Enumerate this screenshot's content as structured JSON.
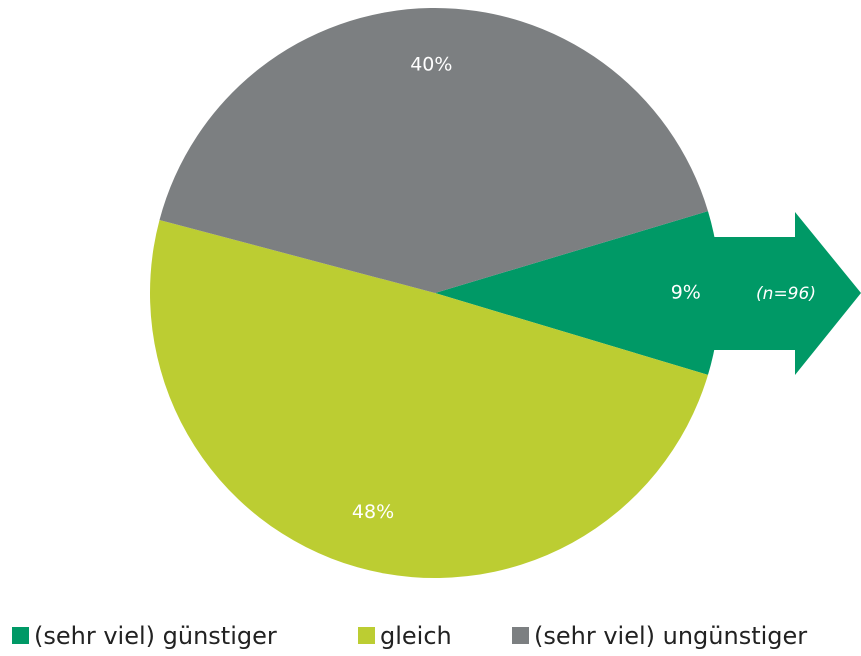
{
  "chart_data": {
    "type": "pie",
    "categories": [
      "(sehr viel) günstiger",
      "gleich",
      "(sehr viel) ungünstiger"
    ],
    "values": [
      9,
      48,
      40
    ],
    "value_labels": [
      "9%",
      "48%",
      "40%"
    ],
    "colors": [
      "#009966",
      "#bccd32",
      "#7c7f81"
    ],
    "annotation": "(n=96)"
  }
}
